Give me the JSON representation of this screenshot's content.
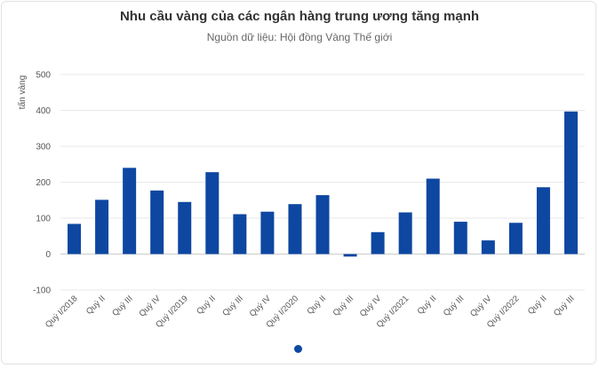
{
  "chart_data": {
    "type": "bar",
    "title": "Nhu cầu vàng của các ngân hàng trung ương tăng mạnh",
    "subtitle": "Nguồn dữ liệu: Hội đồng Vàng Thế giới",
    "ylabel": "tấn vàng",
    "xlabel": "",
    "ylim": [
      -100,
      500
    ],
    "yticks": [
      -100,
      0,
      100,
      200,
      300,
      400,
      500
    ],
    "grid": true,
    "bar_color": "#0d47a1",
    "categories": [
      "Quý I/2018",
      "Quý II",
      "Quý III",
      "Quý IV",
      "Quý I/2019",
      "Quý II",
      "Quý III",
      "Quý IV",
      "Quý I/2020",
      "Quý II",
      "Quý III",
      "Quý IV",
      "Quý I/2021",
      "Quý II",
      "Quý III",
      "Quý IV",
      "Quý I/2022",
      "Quý II",
      "Quý III"
    ],
    "values": [
      84,
      151,
      240,
      177,
      145,
      228,
      111,
      118,
      139,
      164,
      -7,
      61,
      116,
      210,
      90,
      38,
      87,
      186,
      397
    ]
  }
}
